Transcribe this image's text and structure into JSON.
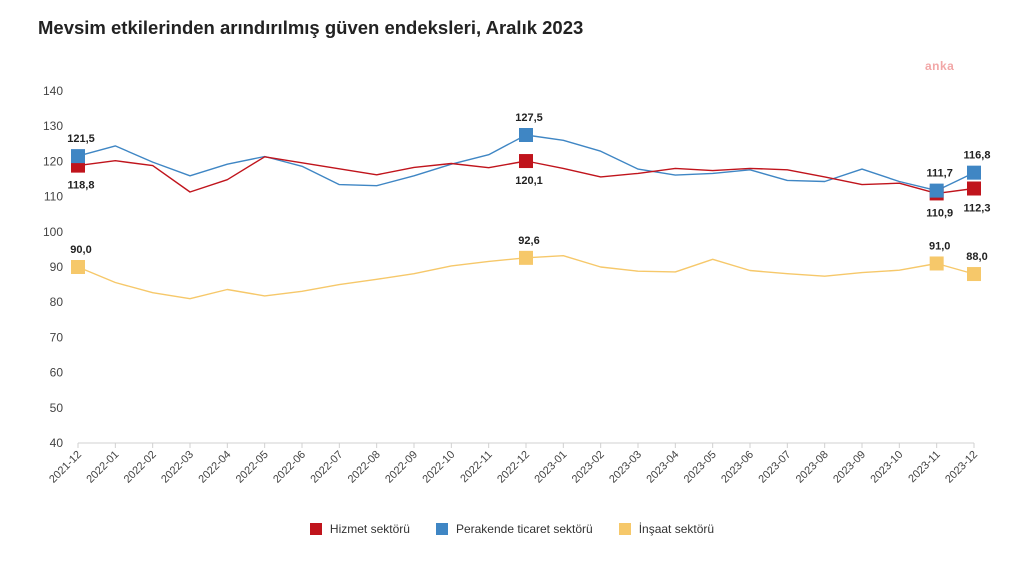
{
  "title": "Mevsim etkilerinden arındırılmış güven endeksleri, Aralık 2023",
  "watermark": "anka",
  "chart_data": {
    "type": "line",
    "categories": [
      "2021-12",
      "2022-01",
      "2022-02",
      "2022-03",
      "2022-04",
      "2022-05",
      "2022-06",
      "2022-07",
      "2022-08",
      "2022-09",
      "2022-10",
      "2022-11",
      "2022-12",
      "2023-01",
      "2023-02",
      "2023-03",
      "2023-04",
      "2023-05",
      "2023-06",
      "2023-07",
      "2023-08",
      "2023-09",
      "2023-10",
      "2023-11",
      "2023-12"
    ],
    "ylim": [
      40,
      140
    ],
    "yticks": [
      40,
      50,
      60,
      70,
      80,
      90,
      100,
      110,
      120,
      130,
      140
    ],
    "series": [
      {
        "name": "Hizmet sektörü",
        "color": "#c0141c",
        "values": [
          118.8,
          120.2,
          118.8,
          111.3,
          114.8,
          121.3,
          119.6,
          117.9,
          116.2,
          118.3,
          119.4,
          118.2,
          120.1,
          118.0,
          115.6,
          116.6,
          118.0,
          117.4,
          118.0,
          117.6,
          115.6,
          113.4,
          113.8,
          110.9,
          112.3
        ]
      },
      {
        "name": "Perakende ticaret sektörü",
        "color": "#3f86c4",
        "values": [
          121.5,
          124.4,
          119.8,
          115.9,
          119.2,
          121.4,
          118.6,
          113.4,
          113.1,
          115.9,
          119.2,
          121.9,
          127.5,
          126.0,
          122.9,
          117.8,
          116.1,
          116.6,
          117.6,
          114.6,
          114.3,
          117.8,
          114.3,
          111.7,
          116.8
        ]
      },
      {
        "name": "İnşaat sektörü",
        "color": "#f6c86a",
        "values": [
          90.0,
          85.6,
          82.7,
          81.0,
          83.6,
          81.8,
          83.1,
          85.0,
          86.5,
          88.1,
          90.3,
          91.6,
          92.6,
          93.2,
          90.0,
          88.8,
          88.6,
          92.2,
          89.0,
          88.1,
          87.4,
          88.4,
          89.1,
          91.0,
          88.0
        ]
      }
    ],
    "markers": [
      {
        "series": 0,
        "index": 0,
        "label": "118,8",
        "pos": "below"
      },
      {
        "series": 0,
        "index": 12,
        "label": "120,1",
        "pos": "below"
      },
      {
        "series": 0,
        "index": 23,
        "label": "110,9",
        "pos": "below"
      },
      {
        "series": 0,
        "index": 24,
        "label": "112,3",
        "pos": "below"
      },
      {
        "series": 1,
        "index": 0,
        "label": "121,5",
        "pos": "above"
      },
      {
        "series": 1,
        "index": 12,
        "label": "127,5",
        "pos": "above"
      },
      {
        "series": 1,
        "index": 23,
        "label": "111,7",
        "pos": "above"
      },
      {
        "series": 1,
        "index": 24,
        "label": "116,8",
        "pos": "above"
      },
      {
        "series": 2,
        "index": 0,
        "label": "90,0",
        "pos": "above"
      },
      {
        "series": 2,
        "index": 12,
        "label": "92,6",
        "pos": "above"
      },
      {
        "series": 2,
        "index": 23,
        "label": "91,0",
        "pos": "above"
      },
      {
        "series": 2,
        "index": 24,
        "label": "88,0",
        "pos": "above"
      }
    ],
    "legend_position": "bottom",
    "grid": false
  }
}
